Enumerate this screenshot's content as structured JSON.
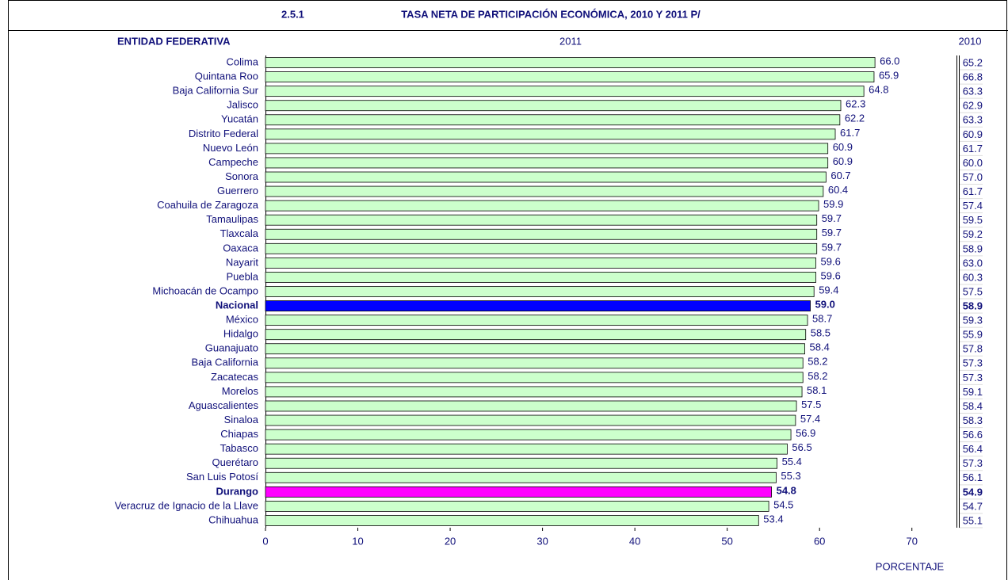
{
  "chart_data": {
    "type": "bar",
    "orientation": "horizontal",
    "section": "2.5.1",
    "title": "TASA NETA DE PARTICIPACIÓN ECONÓMICA, 2010 Y 2011 P/",
    "category_header": "ENTIDAD FEDERATIVA",
    "x_label": "PORCENTAJE",
    "categories": [
      "Colima",
      "Quintana Roo",
      "Baja California Sur",
      "Jalisco",
      "Yucatán",
      "Distrito Federal",
      "Nuevo León",
      "Campeche",
      "Sonora",
      "Guerrero",
      "Coahuila de Zaragoza",
      "Tamaulipas",
      "Tlaxcala",
      "Oaxaca",
      "Nayarit",
      "Puebla",
      "Michoacán de Ocampo",
      "Nacional",
      "México",
      "Hidalgo",
      "Guanajuato",
      "Baja California",
      "Zacatecas",
      "Morelos",
      "Aguascalientes",
      "Sinaloa",
      "Chiapas",
      "Tabasco",
      "Querétaro",
      "San Luis Potosí",
      "Durango",
      "Veracruz de Ignacio de la Llave",
      "Chihuahua"
    ],
    "series": [
      {
        "name": "2011",
        "color": "#ccffcc",
        "values": [
          66.0,
          65.9,
          64.8,
          62.3,
          62.2,
          61.7,
          60.9,
          60.9,
          60.7,
          60.4,
          59.9,
          59.7,
          59.7,
          59.7,
          59.6,
          59.6,
          59.4,
          59.0,
          58.7,
          58.5,
          58.4,
          58.2,
          58.2,
          58.1,
          57.5,
          57.4,
          56.9,
          56.5,
          55.4,
          55.3,
          54.8,
          54.5,
          53.4
        ],
        "value_labels": [
          "66.0",
          "65.9",
          "64.8",
          "62.3",
          "62.2",
          "61.7",
          "60.9",
          "60.9",
          "60.7",
          "60.4",
          "59.9",
          "59.7",
          "59.7",
          "59.7",
          "59.6",
          "59.6",
          "59.4",
          "59.0",
          "58.7",
          "58.5",
          "58.4",
          "58.2",
          "58.2",
          "58.1",
          "57.5",
          "57.4",
          "56.9",
          "56.5",
          "55.4",
          "55.3",
          "54.8",
          "54.5",
          "53.4"
        ]
      }
    ],
    "column": {
      "name": "2010",
      "values": [
        65.2,
        66.8,
        63.3,
        62.9,
        63.3,
        60.9,
        61.7,
        60.0,
        57.0,
        61.7,
        57.4,
        59.5,
        59.2,
        58.9,
        63.0,
        60.3,
        57.5,
        58.9,
        59.3,
        55.9,
        57.8,
        57.3,
        57.3,
        59.1,
        58.4,
        58.3,
        56.6,
        56.4,
        57.3,
        56.1,
        54.9,
        54.7,
        55.1
      ],
      "value_labels": [
        "65.2",
        "66.8",
        "63.3",
        "62.9",
        "63.3",
        "60.9",
        "61.7",
        "60.0",
        "57.0",
        "61.7",
        "57.4",
        "59.5",
        "59.2",
        "58.9",
        "63.0",
        "60.3",
        "57.5",
        "58.9",
        "59.3",
        "55.9",
        "57.8",
        "57.3",
        "57.3",
        "59.1",
        "58.4",
        "58.3",
        "56.6",
        "56.4",
        "57.3",
        "56.1",
        "54.9",
        "54.7",
        "55.1"
      ]
    },
    "highlights": [
      {
        "index": 17,
        "color": "#0000ff"
      },
      {
        "index": 30,
        "color": "#ff00ff"
      }
    ],
    "xlim": [
      0,
      75
    ],
    "xticks": [
      0,
      10,
      20,
      30,
      40,
      50,
      60,
      70
    ]
  }
}
